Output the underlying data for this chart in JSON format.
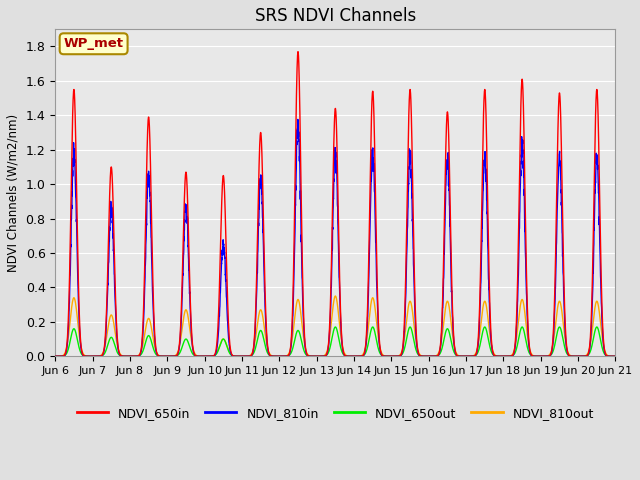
{
  "title": "SRS NDVI Channels",
  "ylabel": "NDVI Channels (W/m2/nm)",
  "ylim": [
    0.0,
    1.9
  ],
  "yticks": [
    0.0,
    0.2,
    0.4,
    0.6,
    0.8,
    1.0,
    1.2,
    1.4,
    1.6,
    1.8
  ],
  "x_tick_labels": [
    "Jun 6",
    "Jun 7",
    "Jun 8",
    "Jun 9",
    "Jun 10",
    "Jun 11",
    "Jun 12",
    "Jun 13",
    "Jun 14",
    "Jun 15",
    "Jun 16",
    "Jun 17",
    "Jun 18",
    "Jun 19",
    "Jun 20",
    "Jun 21"
  ],
  "colors": {
    "NDVI_650in": "#ff0000",
    "NDVI_810in": "#0000ff",
    "NDVI_650out": "#00ee00",
    "NDVI_810out": "#ffaa00"
  },
  "line_width": 1.0,
  "background_color": "#e0e0e0",
  "plot_bg_color": "#e8e8e8",
  "annotation_text": "WP_met",
  "annotation_color": "#aa0000",
  "annotation_bg": "#ffffcc",
  "annotation_border": "#aa8800",
  "peaks_650in": [
    1.55,
    1.1,
    1.39,
    1.07,
    1.05,
    1.3,
    1.77,
    1.44,
    1.54,
    1.55,
    1.42,
    1.55,
    1.61,
    1.53,
    1.55
  ],
  "peaks_810in": [
    1.18,
    0.86,
    1.04,
    0.87,
    0.65,
    1.02,
    1.35,
    1.18,
    1.19,
    1.16,
    1.15,
    1.16,
    1.22,
    1.15,
    1.16
  ],
  "peaks_650out": [
    0.16,
    0.11,
    0.12,
    0.1,
    0.1,
    0.15,
    0.15,
    0.17,
    0.17,
    0.17,
    0.16,
    0.17,
    0.17,
    0.17,
    0.17
  ],
  "peaks_810out": [
    0.34,
    0.24,
    0.22,
    0.27,
    0.1,
    0.27,
    0.33,
    0.35,
    0.34,
    0.32,
    0.32,
    0.32,
    0.33,
    0.32,
    0.32
  ],
  "n_days": 15,
  "pulse_sigma_650in": 1.8,
  "pulse_sigma_810in": 1.8,
  "pulse_sigma_650out": 2.2,
  "pulse_sigma_810out": 2.4,
  "noise_810in": 0.04,
  "peak_hour": 12.0,
  "dt": 0.1
}
